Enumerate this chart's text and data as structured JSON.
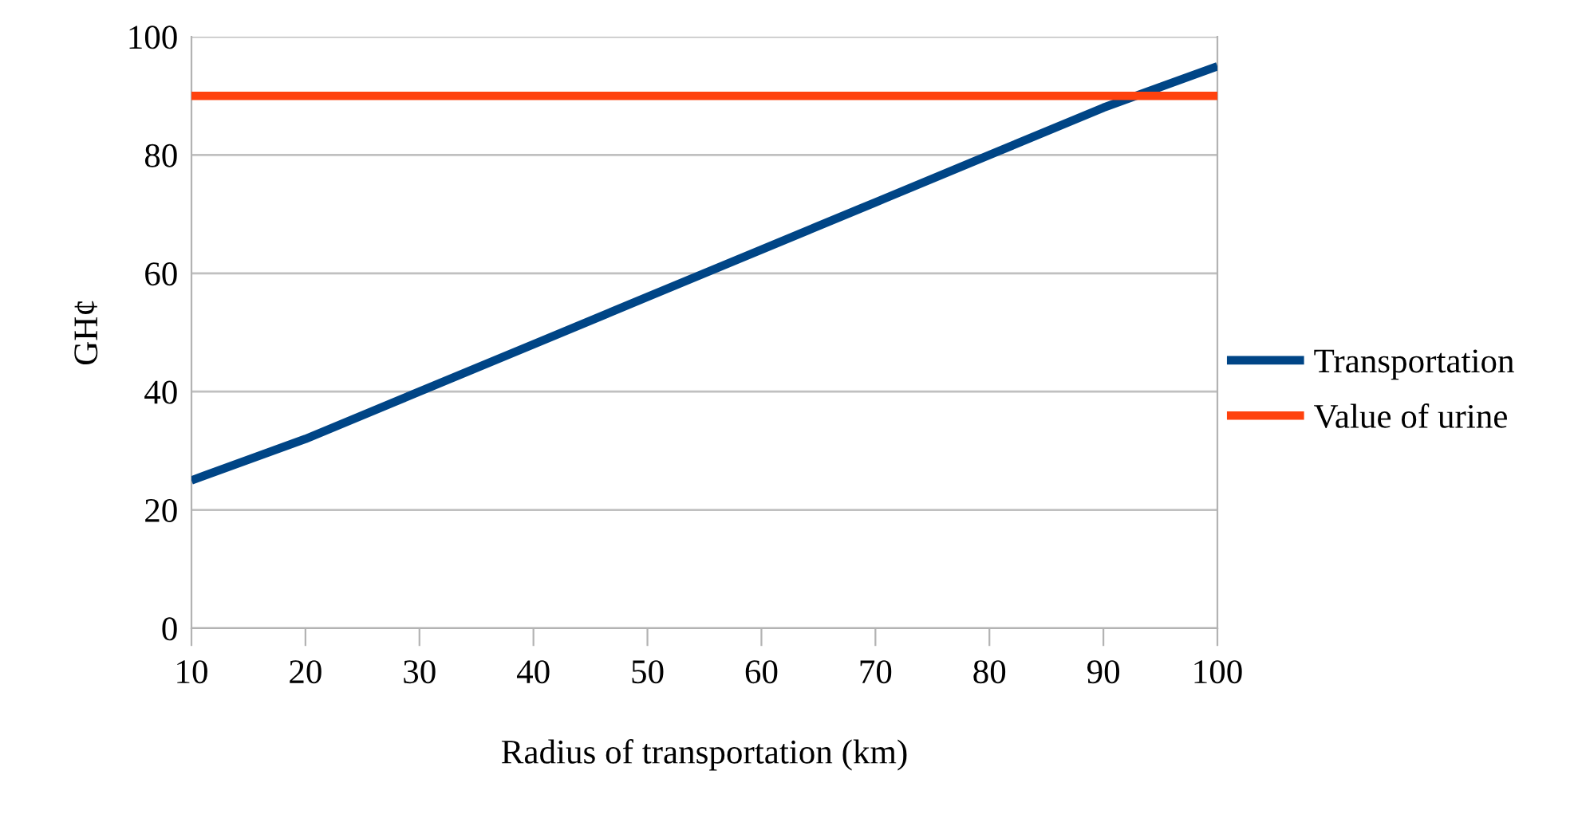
{
  "chart_data": {
    "type": "line",
    "xlabel": "Radius of transportation (km)",
    "ylabel": "GH¢",
    "x": [
      10,
      20,
      30,
      40,
      50,
      60,
      70,
      80,
      90,
      100
    ],
    "series": [
      {
        "name": "Transportation",
        "color": "#004586",
        "values": [
          25,
          32,
          40,
          48,
          56,
          64,
          72,
          80,
          88,
          95
        ]
      },
      {
        "name": "Value of urine",
        "color": "#ff420e",
        "values": [
          90,
          90,
          90,
          90,
          90,
          90,
          90,
          90,
          90,
          90
        ]
      }
    ],
    "xlim": [
      10,
      100
    ],
    "xticks": [
      10,
      20,
      30,
      40,
      50,
      60,
      70,
      80,
      90,
      100
    ],
    "ylim": [
      0,
      100
    ],
    "yticks": [
      0,
      20,
      40,
      60,
      80,
      100
    ],
    "grid": "y",
    "legend": "right",
    "marker": "none",
    "line_style": "solid"
  }
}
